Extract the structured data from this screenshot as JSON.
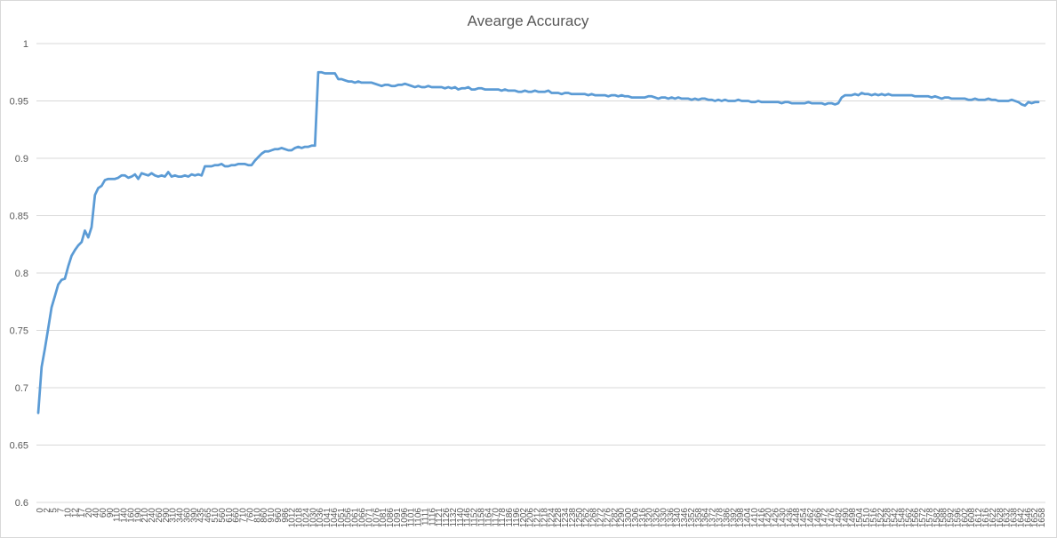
{
  "chart_data": {
    "type": "line",
    "title": "Avearge Accuracy",
    "xlabel": "",
    "ylabel": "",
    "ylim": [
      0.6,
      1.0
    ],
    "y_ticks": [
      "0.6",
      "0.65",
      "0.7",
      "0.75",
      "0.8",
      "0.85",
      "0.9",
      "0.95",
      "1"
    ],
    "x_tick_labels": [
      "0",
      "2",
      "5",
      "7",
      "10",
      "12",
      "17",
      "20",
      "40",
      "60",
      "90",
      "110",
      "140",
      "160",
      "190",
      "210",
      "240",
      "260",
      "290",
      "310",
      "340",
      "360",
      "390",
      "435",
      "465",
      "510",
      "560",
      "610",
      "660",
      "710",
      "760",
      "810",
      "860",
      "910",
      "960",
      "986",
      "1012",
      "1018",
      "1024",
      "1030",
      "1036",
      "1041",
      "1046",
      "1051",
      "1056",
      "1061",
      "1066",
      "1071",
      "1076",
      "1081",
      "1086",
      "1091",
      "1096",
      "1101",
      "1106",
      "1111",
      "1116",
      "1121",
      "1126",
      "1132",
      "1140",
      "1146",
      "1152",
      "1158",
      "1164",
      "1170",
      "1178",
      "1186",
      "1196",
      "1202",
      "1206",
      "1212",
      "1218",
      "1224",
      "1228",
      "1234",
      "1238",
      "1250",
      "1262",
      "1268",
      "1272",
      "1276",
      "1282",
      "1290",
      "1300",
      "1306",
      "1316",
      "1320",
      "1326",
      "1330",
      "1336",
      "1340",
      "1346",
      "1352",
      "1358",
      "1364",
      "1372",
      "1378",
      "1386",
      "1392",
      "1398",
      "1404",
      "1410",
      "1416",
      "1420",
      "1426",
      "1430",
      "1436",
      "1448",
      "1454",
      "1462",
      "1466",
      "1472",
      "1476",
      "1482",
      "1490",
      "1498",
      "1504",
      "1510",
      "1516",
      "1522",
      "1528",
      "1542",
      "1548",
      "1562",
      "1566",
      "1572",
      "1578",
      "1582",
      "1588",
      "1592",
      "1596",
      "1602",
      "1608",
      "1612",
      "1616",
      "1622",
      "1628",
      "1632",
      "1638",
      "1642",
      "1646",
      "1652",
      "1658"
    ],
    "series": [
      {
        "values": [
          0.678,
          0.718,
          0.734,
          0.752,
          0.77,
          0.78,
          0.79,
          0.794,
          0.795,
          0.806,
          0.815,
          0.82,
          0.824,
          0.827,
          0.837,
          0.831,
          0.84,
          0.868,
          0.874,
          0.876,
          0.881,
          0.882,
          0.882,
          0.882,
          0.883,
          0.885,
          0.885,
          0.883,
          0.884,
          0.886,
          0.882,
          0.887,
          0.886,
          0.885,
          0.887,
          0.885,
          0.884,
          0.885,
          0.884,
          0.888,
          0.884,
          0.885,
          0.884,
          0.884,
          0.885,
          0.884,
          0.886,
          0.885,
          0.886,
          0.885,
          0.893,
          0.893,
          0.893,
          0.894,
          0.894,
          0.895,
          0.893,
          0.893,
          0.894,
          0.894,
          0.895,
          0.895,
          0.895,
          0.894,
          0.894,
          0.898,
          0.901,
          0.904,
          0.906,
          0.906,
          0.907,
          0.908,
          0.908,
          0.909,
          0.908,
          0.907,
          0.907,
          0.909,
          0.91,
          0.909,
          0.91,
          0.91,
          0.911,
          0.911,
          0.975,
          0.975,
          0.974,
          0.974,
          0.974,
          0.974,
          0.969,
          0.969,
          0.968,
          0.967,
          0.967,
          0.966,
          0.967,
          0.966,
          0.966,
          0.966,
          0.966,
          0.965,
          0.964,
          0.963,
          0.964,
          0.964,
          0.963,
          0.963,
          0.964,
          0.964,
          0.965,
          0.964,
          0.963,
          0.962,
          0.963,
          0.962,
          0.962,
          0.963,
          0.962,
          0.962,
          0.962,
          0.962,
          0.961,
          0.962,
          0.961,
          0.962,
          0.96,
          0.961,
          0.961,
          0.962,
          0.96,
          0.96,
          0.961,
          0.961,
          0.96,
          0.96,
          0.96,
          0.96,
          0.96,
          0.959,
          0.96,
          0.959,
          0.959,
          0.959,
          0.958,
          0.958,
          0.959,
          0.958,
          0.958,
          0.959,
          0.958,
          0.958,
          0.958,
          0.959,
          0.957,
          0.957,
          0.957,
          0.956,
          0.957,
          0.957,
          0.956,
          0.956,
          0.956,
          0.956,
          0.956,
          0.955,
          0.956,
          0.955,
          0.955,
          0.955,
          0.955,
          0.954,
          0.955,
          0.955,
          0.954,
          0.955,
          0.954,
          0.954,
          0.953,
          0.953,
          0.953,
          0.953,
          0.953,
          0.954,
          0.954,
          0.953,
          0.952,
          0.953,
          0.953,
          0.952,
          0.953,
          0.952,
          0.953,
          0.952,
          0.952,
          0.952,
          0.951,
          0.952,
          0.951,
          0.952,
          0.952,
          0.951,
          0.951,
          0.95,
          0.951,
          0.95,
          0.951,
          0.95,
          0.95,
          0.95,
          0.951,
          0.95,
          0.95,
          0.95,
          0.949,
          0.949,
          0.95,
          0.949,
          0.949,
          0.949,
          0.949,
          0.949,
          0.949,
          0.948,
          0.949,
          0.949,
          0.948,
          0.948,
          0.948,
          0.948,
          0.948,
          0.949,
          0.948,
          0.948,
          0.948,
          0.948,
          0.947,
          0.948,
          0.948,
          0.947,
          0.948,
          0.953,
          0.955,
          0.955,
          0.955,
          0.956,
          0.955,
          0.957,
          0.956,
          0.956,
          0.955,
          0.956,
          0.955,
          0.956,
          0.955,
          0.956,
          0.955,
          0.955,
          0.955,
          0.955,
          0.955,
          0.955,
          0.955,
          0.954,
          0.954,
          0.954,
          0.954,
          0.954,
          0.953,
          0.954,
          0.953,
          0.952,
          0.953,
          0.953,
          0.952,
          0.952,
          0.952,
          0.952,
          0.952,
          0.951,
          0.951,
          0.952,
          0.951,
          0.951,
          0.951,
          0.952,
          0.951,
          0.951,
          0.95,
          0.95,
          0.95,
          0.95,
          0.951,
          0.95,
          0.949,
          0.947,
          0.946,
          0.949,
          0.948,
          0.949,
          0.949
        ]
      }
    ],
    "grid": true,
    "legend": "none",
    "colors": {
      "line": "#5b9bd5",
      "grid": "#d9d9d9",
      "axis": "#d9d9d9",
      "text": "#595959"
    }
  }
}
